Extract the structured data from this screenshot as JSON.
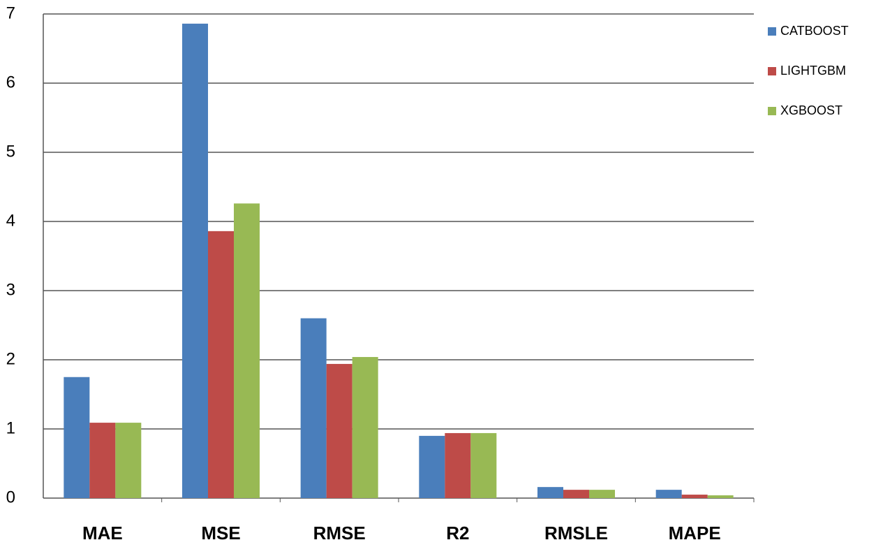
{
  "chart_data": {
    "type": "bar",
    "categories": [
      "MAE",
      "MSE",
      "RMSE",
      "R2",
      "RMSLE",
      "MAPE"
    ],
    "series": [
      {
        "name": "CATBOOST",
        "color": "#4a7ebb",
        "values": [
          1.75,
          6.86,
          2.6,
          0.9,
          0.16,
          0.12
        ]
      },
      {
        "name": "LIGHTGBM",
        "color": "#be4b48",
        "values": [
          1.09,
          3.86,
          1.94,
          0.94,
          0.12,
          0.05
        ]
      },
      {
        "name": "XGBOOST",
        "color": "#98b954",
        "values": [
          1.09,
          4.26,
          2.04,
          0.94,
          0.12,
          0.04
        ]
      }
    ],
    "ylim": [
      0,
      7
    ],
    "yticks": [
      0,
      1,
      2,
      3,
      4,
      5,
      6,
      7
    ],
    "grid": true,
    "legend": "right"
  }
}
